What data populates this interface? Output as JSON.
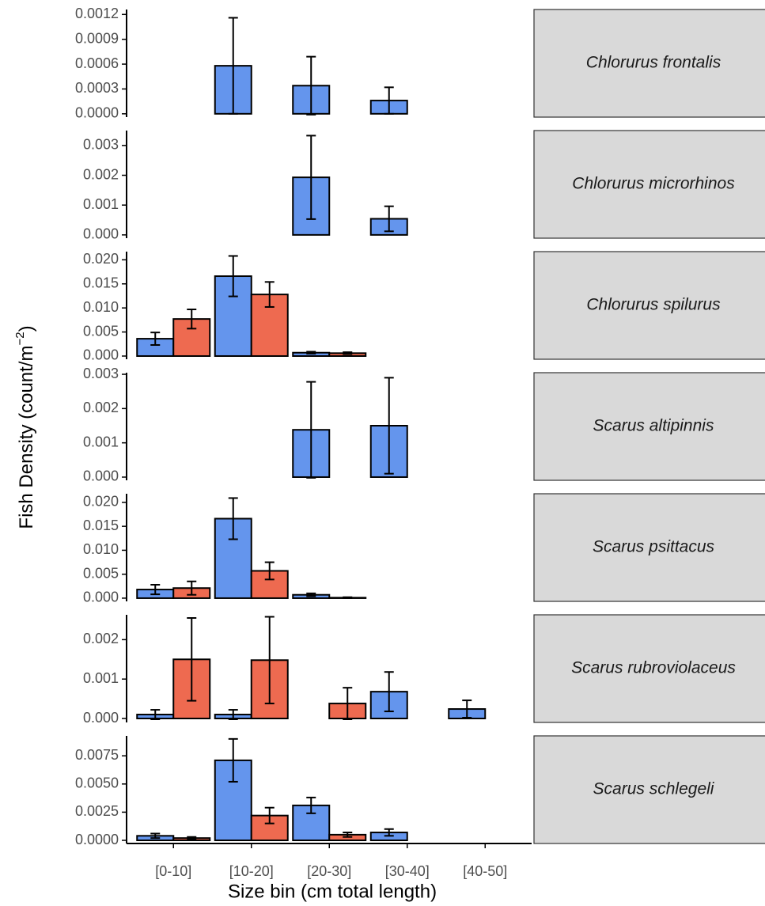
{
  "y_label": {
    "text": "Fish Density (count/m",
    "superscript": "−2",
    "suffix": ")"
  },
  "x_label": "Size bin (cm total length)",
  "categories": [
    "[0-10]",
    "[10-20]",
    "[20-30]",
    "[30-40]",
    "[40-50]"
  ],
  "chart_data": [
    {
      "type": "bar",
      "facet": "Chlorurus frontalis",
      "ylim": [
        -4e-05,
        0.00126
      ],
      "yticks": [
        {
          "value": 0,
          "label": "0.0000"
        },
        0.0003,
        0.0006,
        0.0009,
        0.0012
      ],
      "series": [
        {
          "color": "#6495ed",
          "values": [
            null,
            0.00058,
            0.00034,
            0.00016,
            null
          ],
          "errors": [
            null,
            0.00058,
            0.00035,
            0.00016,
            null
          ]
        },
        {
          "color": "#ee6a50",
          "values": [
            null,
            0,
            0,
            0,
            null
          ],
          "errors": [
            null,
            null,
            null,
            null,
            null
          ]
        }
      ]
    },
    {
      "type": "bar",
      "facet": "Chlorurus microrhinos",
      "ylim": [
        -0.00011,
        0.0035
      ],
      "yticks": [
        {
          "value": 0,
          "label": "0.000"
        },
        0.001,
        0.002,
        0.003
      ],
      "series": [
        {
          "color": "#6495ed",
          "values": [
            null,
            null,
            0.00193,
            0.00054,
            null
          ],
          "errors": [
            null,
            null,
            0.0014,
            0.00042,
            null
          ]
        },
        {
          "color": "#ee6a50",
          "values": [
            null,
            null,
            0,
            0,
            null
          ],
          "errors": [
            null,
            null,
            null,
            null,
            null
          ]
        }
      ]
    },
    {
      "type": "bar",
      "facet": "Chlorurus spilurus",
      "ylim": [
        -0.00066,
        0.0217
      ],
      "yticks": [
        {
          "value": 0,
          "label": "0.000"
        },
        0.005,
        {
          "value": 0.01,
          "label": "0.010"
        },
        0.015,
        {
          "value": 0.02,
          "label": "0.020"
        }
      ],
      "series": [
        {
          "color": "#6495ed",
          "values": [
            0.0036,
            0.0166,
            0.0007,
            null,
            null
          ],
          "errors": [
            0.0013,
            0.0042,
            0.0002,
            null,
            null
          ]
        },
        {
          "color": "#ee6a50",
          "values": [
            0.0077,
            0.0128,
            0.0006,
            null,
            null
          ],
          "errors": [
            0.002,
            0.0026,
            0.0002,
            null,
            null
          ]
        }
      ]
    },
    {
      "type": "bar",
      "facet": "Scarus altipinnis",
      "ylim": [
        -9.3e-05,
        0.003047
      ],
      "yticks": [
        {
          "value": 0,
          "label": "0.000"
        },
        0.001,
        0.002,
        0.003
      ],
      "series": [
        {
          "color": "#6495ed",
          "values": [
            null,
            null,
            0.00138,
            0.0015,
            null
          ],
          "errors": [
            null,
            null,
            0.0014,
            0.0014,
            null
          ]
        },
        {
          "color": "#ee6a50",
          "values": [
            null,
            null,
            0,
            0,
            null
          ],
          "errors": [
            null,
            null,
            null,
            null,
            null
          ]
        }
      ]
    },
    {
      "type": "bar",
      "facet": "Scarus psittacus",
      "ylim": [
        -0.00067,
        0.0218
      ],
      "yticks": [
        {
          "value": 0,
          "label": "0.000"
        },
        0.005,
        {
          "value": 0.01,
          "label": "0.010"
        },
        0.015,
        {
          "value": 0.02,
          "label": "0.020"
        }
      ],
      "series": [
        {
          "color": "#6495ed",
          "values": [
            0.0018,
            0.0166,
            0.0007,
            null,
            null
          ],
          "errors": [
            0.001,
            0.0043,
            0.0003,
            null,
            null
          ]
        },
        {
          "color": "#ee6a50",
          "values": [
            0.0021,
            0.0057,
            0.0001,
            null,
            null
          ],
          "errors": [
            0.0014,
            0.0018,
            0.0001,
            null,
            null
          ]
        }
      ]
    },
    {
      "type": "bar",
      "facet": "Scarus rubroviolaceus",
      "ylim": [
        -0.0001,
        0.00263
      ],
      "yticks": [
        {
          "value": 0,
          "label": "0.000"
        },
        0.001,
        0.002
      ],
      "series": [
        {
          "color": "#6495ed",
          "values": [
            0.0001,
            0.0001,
            0,
            0.00068,
            0.00024
          ],
          "errors": [
            0.00012,
            0.00012,
            null,
            0.0005,
            0.00022
          ]
        },
        {
          "color": "#ee6a50",
          "values": [
            0.0015,
            0.00148,
            0.00038,
            0,
            0
          ],
          "errors": [
            0.00105,
            0.0011,
            0.0004,
            null,
            null
          ]
        }
      ]
    },
    {
      "type": "bar",
      "facet": "Scarus schlegeli",
      "ylim": [
        -0.00028,
        0.00927
      ],
      "yticks": [
        {
          "value": 0,
          "label": "0.0000"
        },
        0.0025,
        {
          "value": 0.005,
          "label": "0.0050"
        },
        0.0075
      ],
      "series": [
        {
          "color": "#6495ed",
          "values": [
            0.0004,
            0.0071,
            0.0031,
            0.0007,
            null
          ],
          "errors": [
            0.0002,
            0.0019,
            0.0007,
            0.0003,
            null
          ]
        },
        {
          "color": "#ee6a50",
          "values": [
            0.0002,
            0.0022,
            0.0005,
            0,
            null
          ],
          "errors": [
            0.0001,
            0.0007,
            0.0002,
            null,
            null
          ]
        }
      ]
    }
  ]
}
